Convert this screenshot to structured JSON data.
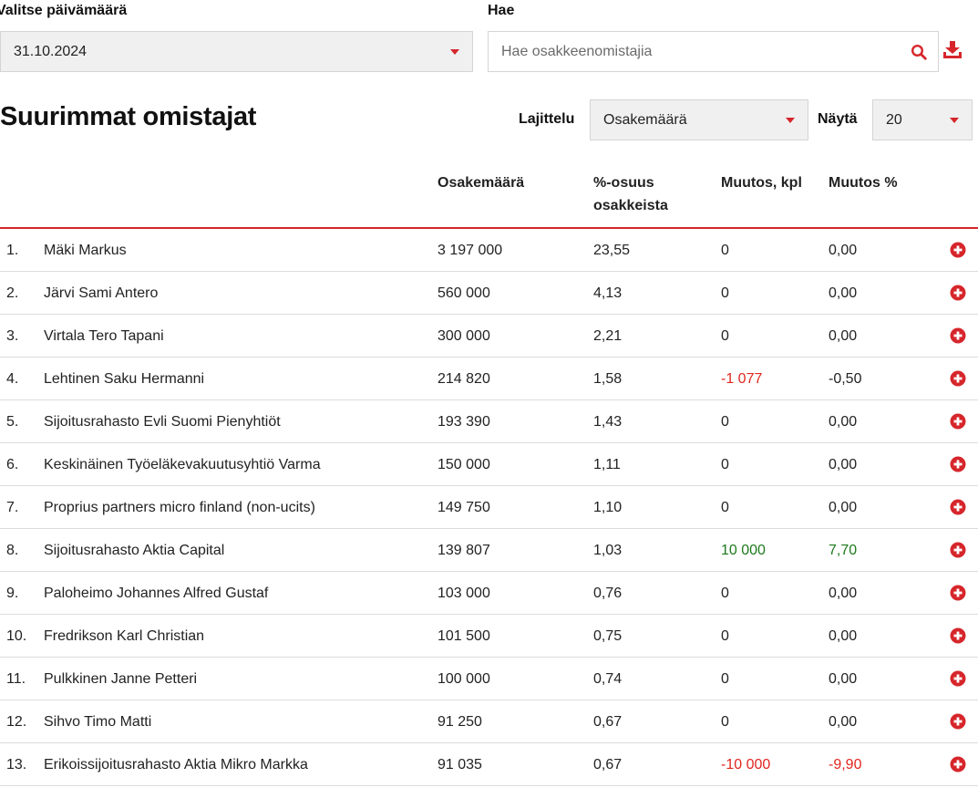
{
  "filters": {
    "date_label": "Valitse päivämäärä",
    "date_value": "31.10.2024",
    "search_label": "Hae",
    "search_placeholder": "Hae osakkeenomistajia"
  },
  "section": {
    "title": "Suurimmat omistajat",
    "sort_label": "Lajittelu",
    "sort_value": "Osakemäärä",
    "show_label": "Näytä",
    "show_value": "20"
  },
  "table": {
    "headers": {
      "shares": "Osakemäärä",
      "pct_line1": "%-osuus",
      "pct_line2": "osakkeista",
      "change": "Muutos, kpl",
      "change_pct": "Muutos %"
    },
    "rows": [
      {
        "rank": "1.",
        "name": "Mäki Markus",
        "shares": "3 197 000",
        "pct": "23,55",
        "change": "0",
        "change_pct": "0,00",
        "trend": "neutral"
      },
      {
        "rank": "2.",
        "name": "Järvi Sami Antero",
        "shares": "560 000",
        "pct": "4,13",
        "change": "0",
        "change_pct": "0,00",
        "trend": "neutral"
      },
      {
        "rank": "3.",
        "name": "Virtala Tero Tapani",
        "shares": "300 000",
        "pct": "2,21",
        "change": "0",
        "change_pct": "0,00",
        "trend": "neutral"
      },
      {
        "rank": "4.",
        "name": "Lehtinen Saku Hermanni",
        "shares": "214 820",
        "pct": "1,58",
        "change": "-1 077",
        "change_pct": "-0,50",
        "trend": "neg-count"
      },
      {
        "rank": "5.",
        "name": "Sijoitusrahasto Evli Suomi Pienyhtiöt",
        "shares": "193 390",
        "pct": "1,43",
        "change": "0",
        "change_pct": "0,00",
        "trend": "neutral"
      },
      {
        "rank": "6.",
        "name": "Keskinäinen Työeläkevakuutusyhtiö Varma",
        "shares": "150 000",
        "pct": "1,11",
        "change": "0",
        "change_pct": "0,00",
        "trend": "neutral"
      },
      {
        "rank": "7.",
        "name": "Proprius partners micro finland (non-ucits)",
        "shares": "149 750",
        "pct": "1,10",
        "change": "0",
        "change_pct": "0,00",
        "trend": "neutral"
      },
      {
        "rank": "8.",
        "name": "Sijoitusrahasto Aktia Capital",
        "shares": "139 807",
        "pct": "1,03",
        "change": "10 000",
        "change_pct": "7,70",
        "trend": "pos"
      },
      {
        "rank": "9.",
        "name": "Paloheimo Johannes Alfred Gustaf",
        "shares": "103 000",
        "pct": "0,76",
        "change": "0",
        "change_pct": "0,00",
        "trend": "neutral"
      },
      {
        "rank": "10.",
        "name": "Fredrikson Karl Christian",
        "shares": "101 500",
        "pct": "0,75",
        "change": "0",
        "change_pct": "0,00",
        "trend": "neutral"
      },
      {
        "rank": "11.",
        "name": "Pulkkinen Janne Petteri",
        "shares": "100 000",
        "pct": "0,74",
        "change": "0",
        "change_pct": "0,00",
        "trend": "neutral"
      },
      {
        "rank": "12.",
        "name": "Sihvo Timo Matti",
        "shares": "91 250",
        "pct": "0,67",
        "change": "0",
        "change_pct": "0,00",
        "trend": "neutral"
      },
      {
        "rank": "13.",
        "name": "Erikoissijoitusrahasto Aktia Mikro Markka",
        "shares": "91 035",
        "pct": "0,67",
        "change": "-10 000",
        "change_pct": "-9,90",
        "trend": "neg"
      }
    ]
  },
  "icons": {
    "select_caret": "caret-down-icon",
    "search": "search-icon",
    "download": "download-icon",
    "row_expand": "plus-circle-icon"
  },
  "colors": {
    "accent": "#d6262b",
    "negative": "#e0261f",
    "positive": "#1d7a1d"
  }
}
